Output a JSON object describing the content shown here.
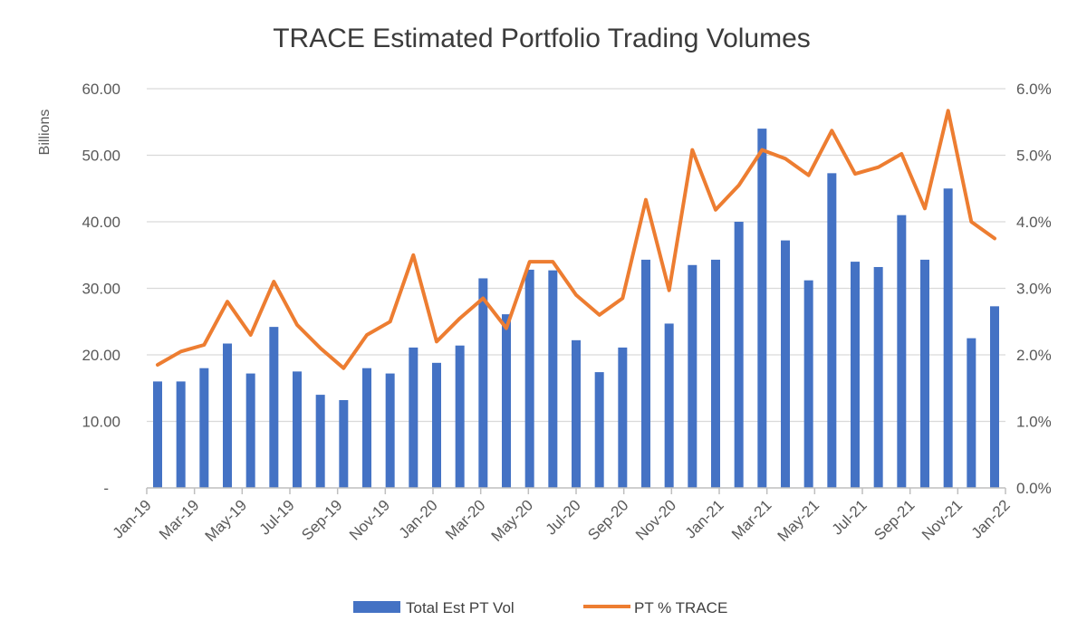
{
  "chart_data": {
    "type": "bar+line",
    "title": "TRACE Estimated Portfolio Trading Volumes",
    "ylabel": "Billions",
    "y_left_ticks": [
      "-",
      "10.00",
      "20.00",
      "30.00",
      "40.00",
      "50.00",
      "60.00"
    ],
    "y_right_ticks": [
      "0.0%",
      "1.0%",
      "2.0%",
      "3.0%",
      "4.0%",
      "5.0%",
      "6.0%"
    ],
    "ylim_left": [
      0,
      60
    ],
    "ylim_right": [
      0,
      6
    ],
    "grid": true,
    "legend_position": "bottom",
    "x_tick_labels": [
      "Jan-19",
      "Mar-19",
      "May-19",
      "Jul-19",
      "Sep-19",
      "Nov-19",
      "Jan-20",
      "Mar-20",
      "May-20",
      "Jul-20",
      "Sep-20",
      "Nov-20",
      "Jan-21",
      "Mar-21",
      "May-21",
      "Jul-21",
      "Sep-21",
      "Nov-21",
      "Jan-22"
    ],
    "series": [
      {
        "name": "Total Est PT Vol",
        "kind": "bar",
        "axis": "left",
        "color": "#4472c4",
        "values": [
          16.0,
          16.0,
          18.0,
          21.7,
          17.2,
          24.2,
          17.5,
          14.0,
          13.2,
          18.0,
          17.2,
          21.1,
          18.8,
          21.4,
          31.5,
          26.1,
          32.8,
          32.7,
          22.2,
          17.4,
          21.1,
          34.3,
          24.7,
          33.5,
          34.3,
          40.0,
          54.0,
          37.2,
          31.2,
          47.3,
          34.0,
          33.2,
          41.0,
          34.3,
          45.0,
          22.5,
          27.3
        ]
      },
      {
        "name": "PT % TRACE",
        "kind": "line",
        "axis": "right",
        "color": "#ed7d31",
        "values": [
          1.85,
          2.05,
          2.15,
          2.8,
          2.3,
          3.1,
          2.45,
          2.1,
          1.8,
          2.3,
          2.5,
          3.5,
          2.2,
          2.55,
          2.85,
          2.4,
          3.4,
          3.4,
          2.9,
          2.6,
          2.85,
          4.33,
          2.97,
          5.08,
          4.18,
          4.55,
          5.08,
          4.95,
          4.7,
          5.37,
          4.72,
          4.82,
          5.02,
          4.2,
          5.67,
          4.0,
          3.75
        ]
      }
    ]
  }
}
